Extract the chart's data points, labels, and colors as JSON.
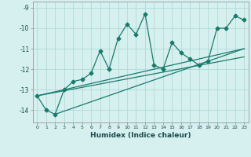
{
  "xlabel": "Humidex (Indice chaleur)",
  "background_color": "#d6f0f0",
  "grid_color": "#b0dada",
  "line_color": "#1a7a6a",
  "xlim": [
    -0.5,
    23.5
  ],
  "ylim": [
    -14.6,
    -8.7
  ],
  "yticks": [
    -14,
    -13,
    -12,
    -11,
    -10,
    -9
  ],
  "xticks": [
    0,
    1,
    2,
    3,
    4,
    5,
    6,
    7,
    8,
    9,
    10,
    11,
    12,
    13,
    14,
    15,
    16,
    17,
    18,
    19,
    20,
    21,
    22,
    23
  ],
  "series1_x": [
    0,
    1,
    2,
    3,
    4,
    5,
    6,
    7,
    8,
    9,
    10,
    11,
    12,
    13,
    14,
    15,
    16,
    17,
    18,
    19,
    20,
    21,
    22,
    23
  ],
  "series1_y": [
    -13.3,
    -14.0,
    -14.2,
    -13.0,
    -12.6,
    -12.5,
    -12.2,
    -11.1,
    -12.0,
    -10.5,
    -9.8,
    -10.3,
    -9.3,
    -11.8,
    -12.0,
    -10.7,
    -11.2,
    -11.5,
    -11.8,
    -11.6,
    -10.0,
    -10.0,
    -9.4,
    -9.6
  ],
  "series2_x": [
    0,
    23
  ],
  "series2_y": [
    -13.3,
    -11.0
  ],
  "series3_x": [
    0,
    23
  ],
  "series3_y": [
    -13.3,
    -11.4
  ],
  "series4_x": [
    2,
    23
  ],
  "series4_y": [
    -14.2,
    -11.0
  ]
}
